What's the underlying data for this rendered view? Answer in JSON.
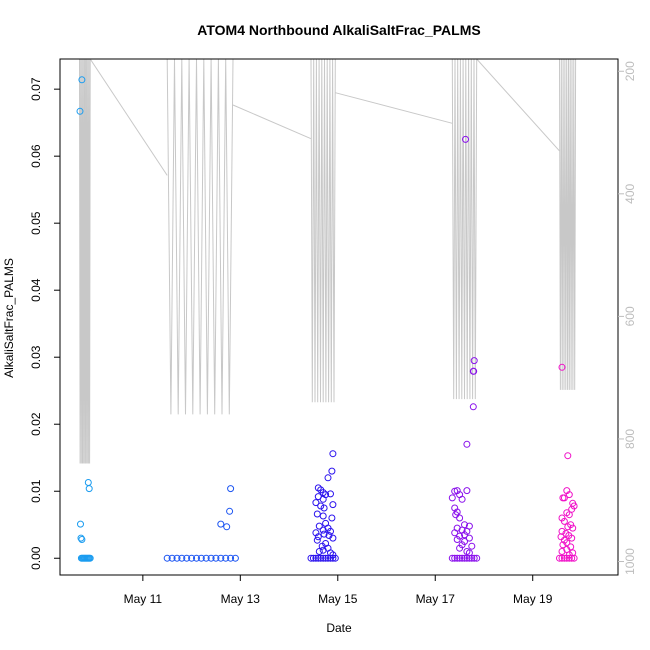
{
  "chart_data": {
    "type": "scatter",
    "title": "ATOM4 Northbound AlkaliSaltFrac_PALMS",
    "xlabel": "Date",
    "ylabel": "AlkaliSaltFrac_PALMS",
    "x_unit": "days (May)",
    "xlim": [
      9.3,
      20.75
    ],
    "ylim": [
      -0.0025,
      0.0745
    ],
    "x_ticks": [
      {
        "value": 11,
        "label": "May 11"
      },
      {
        "value": 13,
        "label": "May 13"
      },
      {
        "value": 15,
        "label": "May 15"
      },
      {
        "value": 17,
        "label": "May 17"
      },
      {
        "value": 19,
        "label": "May 19"
      }
    ],
    "y_ticks": [
      {
        "value": 0.0,
        "label": "0.00"
      },
      {
        "value": 0.01,
        "label": "0.01"
      },
      {
        "value": 0.02,
        "label": "0.02"
      },
      {
        "value": 0.03,
        "label": "0.03"
      },
      {
        "value": 0.04,
        "label": "0.04"
      },
      {
        "value": 0.05,
        "label": "0.05"
      },
      {
        "value": 0.06,
        "label": "0.06"
      },
      {
        "value": 0.07,
        "label": "0.07"
      }
    ],
    "right_axis": {
      "ylim": [
        1022,
        180
      ],
      "ticks": [
        {
          "value": 200,
          "label": "200"
        },
        {
          "value": 400,
          "label": "400"
        },
        {
          "value": 600,
          "label": "600"
        },
        {
          "value": 800,
          "label": "800"
        },
        {
          "value": 1000,
          "label": "1000"
        }
      ],
      "color": "#bdbdbd"
    },
    "grid": false,
    "legend": "none",
    "series": [
      {
        "color": "#1a9cf0",
        "points": [
          [
            9.74,
            0
          ],
          [
            9.76,
            0
          ],
          [
            9.78,
            0
          ],
          [
            9.8,
            0
          ],
          [
            9.82,
            0
          ],
          [
            9.84,
            0
          ],
          [
            9.86,
            0
          ],
          [
            9.88,
            0
          ],
          [
            9.9,
            0
          ],
          [
            9.92,
            0
          ],
          [
            9.71,
            0.0667
          ],
          [
            9.75,
            0.0714
          ],
          [
            9.72,
            0.0051
          ],
          [
            9.73,
            0.003
          ],
          [
            9.75,
            0.0028
          ],
          [
            9.88,
            0.0113
          ],
          [
            9.9,
            0.0104
          ]
        ]
      },
      {
        "color": "#1c55f2",
        "points": [
          [
            11.5,
            0
          ],
          [
            11.6,
            0
          ],
          [
            11.7,
            0
          ],
          [
            11.8,
            0
          ],
          [
            11.9,
            0
          ],
          [
            12.0,
            0
          ],
          [
            12.1,
            0
          ],
          [
            12.2,
            0
          ],
          [
            12.3,
            0
          ],
          [
            12.4,
            0
          ],
          [
            12.5,
            0
          ],
          [
            12.6,
            0
          ],
          [
            12.7,
            0
          ],
          [
            12.8,
            0
          ],
          [
            12.9,
            0
          ],
          [
            12.6,
            0.0051
          ],
          [
            12.72,
            0.0047
          ],
          [
            12.78,
            0.007
          ],
          [
            12.8,
            0.0104
          ]
        ]
      },
      {
        "color": "#2a12ee",
        "points": [
          [
            14.45,
            0
          ],
          [
            14.5,
            0
          ],
          [
            14.55,
            0
          ],
          [
            14.6,
            0
          ],
          [
            14.65,
            0
          ],
          [
            14.7,
            0
          ],
          [
            14.75,
            0
          ],
          [
            14.8,
            0
          ],
          [
            14.85,
            0
          ],
          [
            14.9,
            0
          ],
          [
            14.95,
            0
          ],
          [
            14.9,
            0.0156
          ],
          [
            14.88,
            0.013
          ],
          [
            14.8,
            0.012
          ],
          [
            14.6,
            0.0105
          ],
          [
            14.65,
            0.0102
          ],
          [
            14.7,
            0.0098
          ],
          [
            14.75,
            0.0095
          ],
          [
            14.6,
            0.0092
          ],
          [
            14.7,
            0.0088
          ],
          [
            14.85,
            0.0096
          ],
          [
            14.55,
            0.0083
          ],
          [
            14.65,
            0.0078
          ],
          [
            14.72,
            0.0075
          ],
          [
            14.9,
            0.008
          ],
          [
            14.58,
            0.0066
          ],
          [
            14.7,
            0.0063
          ],
          [
            14.88,
            0.006
          ],
          [
            14.75,
            0.0052
          ],
          [
            14.62,
            0.0048
          ],
          [
            14.8,
            0.0045
          ],
          [
            14.7,
            0.0042
          ],
          [
            14.85,
            0.004
          ],
          [
            14.55,
            0.0038
          ],
          [
            14.72,
            0.0036
          ],
          [
            14.82,
            0.0034
          ],
          [
            14.6,
            0.0032
          ],
          [
            14.9,
            0.003
          ],
          [
            14.58,
            0.0027
          ],
          [
            14.75,
            0.0022
          ],
          [
            14.68,
            0.0018
          ],
          [
            14.8,
            0.0015
          ],
          [
            14.7,
            0.0012
          ],
          [
            14.62,
            0.001
          ],
          [
            14.85,
            0.0008
          ],
          [
            14.9,
            0.0005
          ]
        ]
      },
      {
        "color": "#8a10ec",
        "points": [
          [
            17.35,
            0
          ],
          [
            17.4,
            0
          ],
          [
            17.45,
            0
          ],
          [
            17.5,
            0
          ],
          [
            17.55,
            0
          ],
          [
            17.6,
            0
          ],
          [
            17.65,
            0
          ],
          [
            17.7,
            0
          ],
          [
            17.75,
            0
          ],
          [
            17.8,
            0
          ],
          [
            17.85,
            0
          ],
          [
            17.62,
            0.0625
          ],
          [
            17.8,
            0.0295
          ],
          [
            17.78,
            0.0279
          ],
          [
            17.79,
            0.0279
          ],
          [
            17.65,
            0.017
          ],
          [
            17.78,
            0.0226
          ],
          [
            17.4,
            0.01
          ],
          [
            17.45,
            0.0101
          ],
          [
            17.65,
            0.0101
          ],
          [
            17.5,
            0.0095
          ],
          [
            17.35,
            0.009
          ],
          [
            17.55,
            0.0088
          ],
          [
            17.4,
            0.0075
          ],
          [
            17.45,
            0.0069
          ],
          [
            17.42,
            0.0065
          ],
          [
            17.5,
            0.006
          ],
          [
            17.6,
            0.005
          ],
          [
            17.7,
            0.0048
          ],
          [
            17.45,
            0.0045
          ],
          [
            17.55,
            0.0042
          ],
          [
            17.65,
            0.004
          ],
          [
            17.4,
            0.0038
          ],
          [
            17.6,
            0.0035
          ],
          [
            17.5,
            0.0033
          ],
          [
            17.7,
            0.003
          ],
          [
            17.45,
            0.0028
          ],
          [
            17.6,
            0.0025
          ],
          [
            17.55,
            0.002
          ],
          [
            17.75,
            0.0018
          ],
          [
            17.5,
            0.0015
          ],
          [
            17.65,
            0.001
          ],
          [
            17.7,
            0.0008
          ]
        ]
      },
      {
        "color": "#f011c8",
        "points": [
          [
            19.55,
            0
          ],
          [
            19.6,
            0
          ],
          [
            19.65,
            0
          ],
          [
            19.7,
            0
          ],
          [
            19.75,
            0
          ],
          [
            19.8,
            0
          ],
          [
            19.85,
            0
          ],
          [
            19.6,
            0.0285
          ],
          [
            19.72,
            0.0153
          ],
          [
            19.7,
            0.0101
          ],
          [
            19.75,
            0.0095
          ],
          [
            19.65,
            0.009
          ],
          [
            19.62,
            0.009
          ],
          [
            19.82,
            0.0082
          ],
          [
            19.85,
            0.0078
          ],
          [
            19.8,
            0.0073
          ],
          [
            19.7,
            0.0068
          ],
          [
            19.75,
            0.0065
          ],
          [
            19.6,
            0.006
          ],
          [
            19.65,
            0.0055
          ],
          [
            19.78,
            0.005
          ],
          [
            19.72,
            0.0047
          ],
          [
            19.82,
            0.0045
          ],
          [
            19.6,
            0.004
          ],
          [
            19.68,
            0.0037
          ],
          [
            19.74,
            0.0034
          ],
          [
            19.58,
            0.0032
          ],
          [
            19.8,
            0.003
          ],
          [
            19.65,
            0.0027
          ],
          [
            19.7,
            0.0023
          ],
          [
            19.62,
            0.002
          ],
          [
            19.78,
            0.0017
          ],
          [
            19.7,
            0.0013
          ],
          [
            19.6,
            0.001
          ],
          [
            19.82,
            0.0008
          ],
          [
            19.75,
            0.0005
          ]
        ]
      }
    ],
    "flight_track": {
      "axis": "right",
      "color": "#c8c8c8",
      "segments": [
        {
          "x_start": 9.7,
          "x_end": 9.92,
          "oscillation": [
            180,
            840
          ]
        },
        {
          "x_start": 9.92,
          "x_end": 11.5,
          "profile": [
            [
              9.92,
              180
            ],
            [
              11.5,
              370
            ]
          ]
        },
        {
          "x_start": 11.5,
          "x_end": 12.85,
          "oscillation": [
            180,
            760
          ]
        },
        {
          "x_start": 12.85,
          "x_end": 14.45,
          "profile": [
            [
              12.85,
              255
            ],
            [
              14.45,
              310
            ]
          ]
        },
        {
          "x_start": 14.45,
          "x_end": 14.95,
          "oscillation": [
            180,
            740
          ]
        },
        {
          "x_start": 14.95,
          "x_end": 17.35,
          "profile": [
            [
              14.95,
              235
            ],
            [
              17.35,
              285
            ]
          ]
        },
        {
          "x_start": 17.35,
          "x_end": 17.85,
          "oscillation": [
            180,
            735
          ]
        },
        {
          "x_start": 17.85,
          "x_end": 19.55,
          "profile": [
            [
              17.85,
              180
            ],
            [
              19.55,
              330
            ]
          ]
        },
        {
          "x_start": 19.55,
          "x_end": 19.88,
          "oscillation": [
            180,
            720
          ]
        }
      ]
    }
  }
}
